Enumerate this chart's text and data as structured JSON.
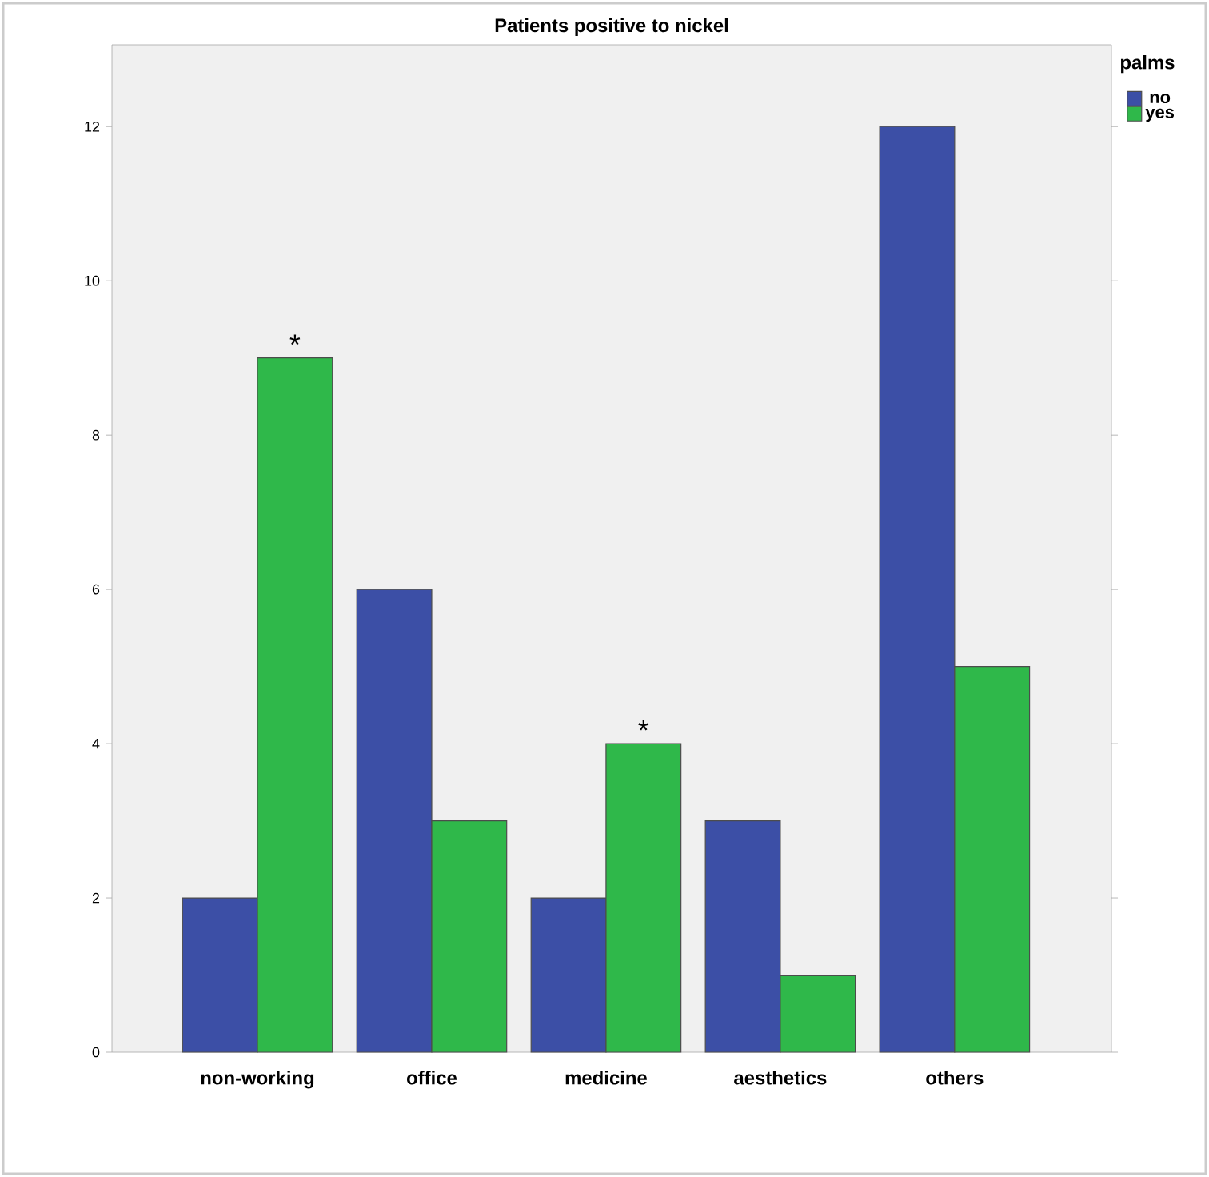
{
  "chart_data": {
    "type": "bar",
    "title": "Patients positive to nickel",
    "categories": [
      "non-working",
      "office",
      "medicine",
      "aesthetics",
      "others"
    ],
    "series": [
      {
        "name": "no",
        "color": "#3c4fa6",
        "values": [
          2,
          6,
          2,
          3,
          12
        ]
      },
      {
        "name": "yes",
        "color": "#2fb84a",
        "values": [
          9,
          3,
          4,
          1,
          5
        ]
      }
    ],
    "ylim": [
      0,
      13.06
    ],
    "yticks": [
      0,
      2,
      4,
      6,
      8,
      10,
      12
    ],
    "legend": "top right",
    "legend_title": "palms",
    "annotations": [
      {
        "text": "*",
        "x": "non-working",
        "y": 9
      },
      {
        "text": "*",
        "x": "medicine",
        "y": 4
      }
    ]
  }
}
